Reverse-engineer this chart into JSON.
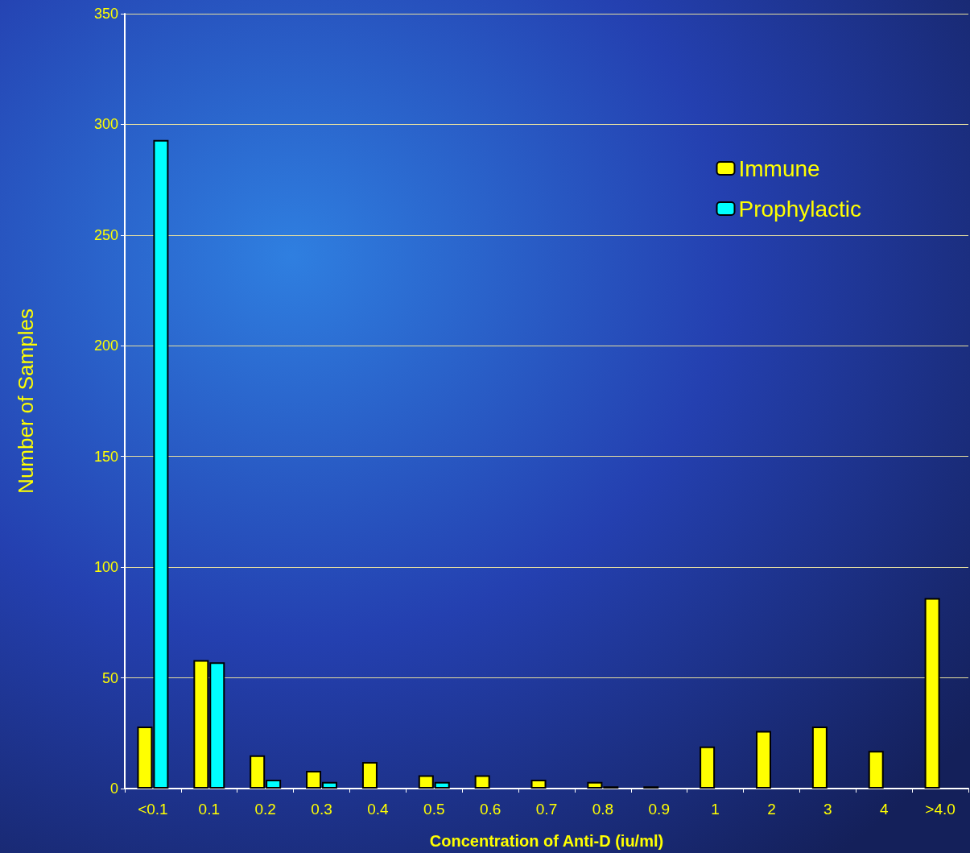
{
  "chart_data": {
    "type": "bar",
    "xlabel": "Concentration of Anti-D (iu/ml)",
    "ylabel": "Number of Samples",
    "categories": [
      "<0.1",
      "0.1",
      "0.2",
      "0.3",
      "0.4",
      "0.5",
      "0.6",
      "0.7",
      "0.8",
      "0.9",
      "1",
      "2",
      "3",
      "4",
      ">4.0"
    ],
    "series": [
      {
        "name": "Immune",
        "color": "#ffff00",
        "values": [
          28,
          58,
          15,
          8,
          12,
          6,
          6,
          4,
          3,
          1,
          19,
          26,
          28,
          17,
          86
        ]
      },
      {
        "name": "Prophylactic",
        "color": "#00ffff",
        "values": [
          293,
          57,
          4,
          3,
          0,
          3,
          0,
          0,
          1,
          0,
          0,
          0,
          0,
          0,
          0
        ]
      }
    ],
    "ylim": [
      0,
      350
    ],
    "yticks": [
      0,
      50,
      100,
      150,
      200,
      250,
      300,
      350
    ],
    "grid": "y",
    "legend": "top right"
  }
}
